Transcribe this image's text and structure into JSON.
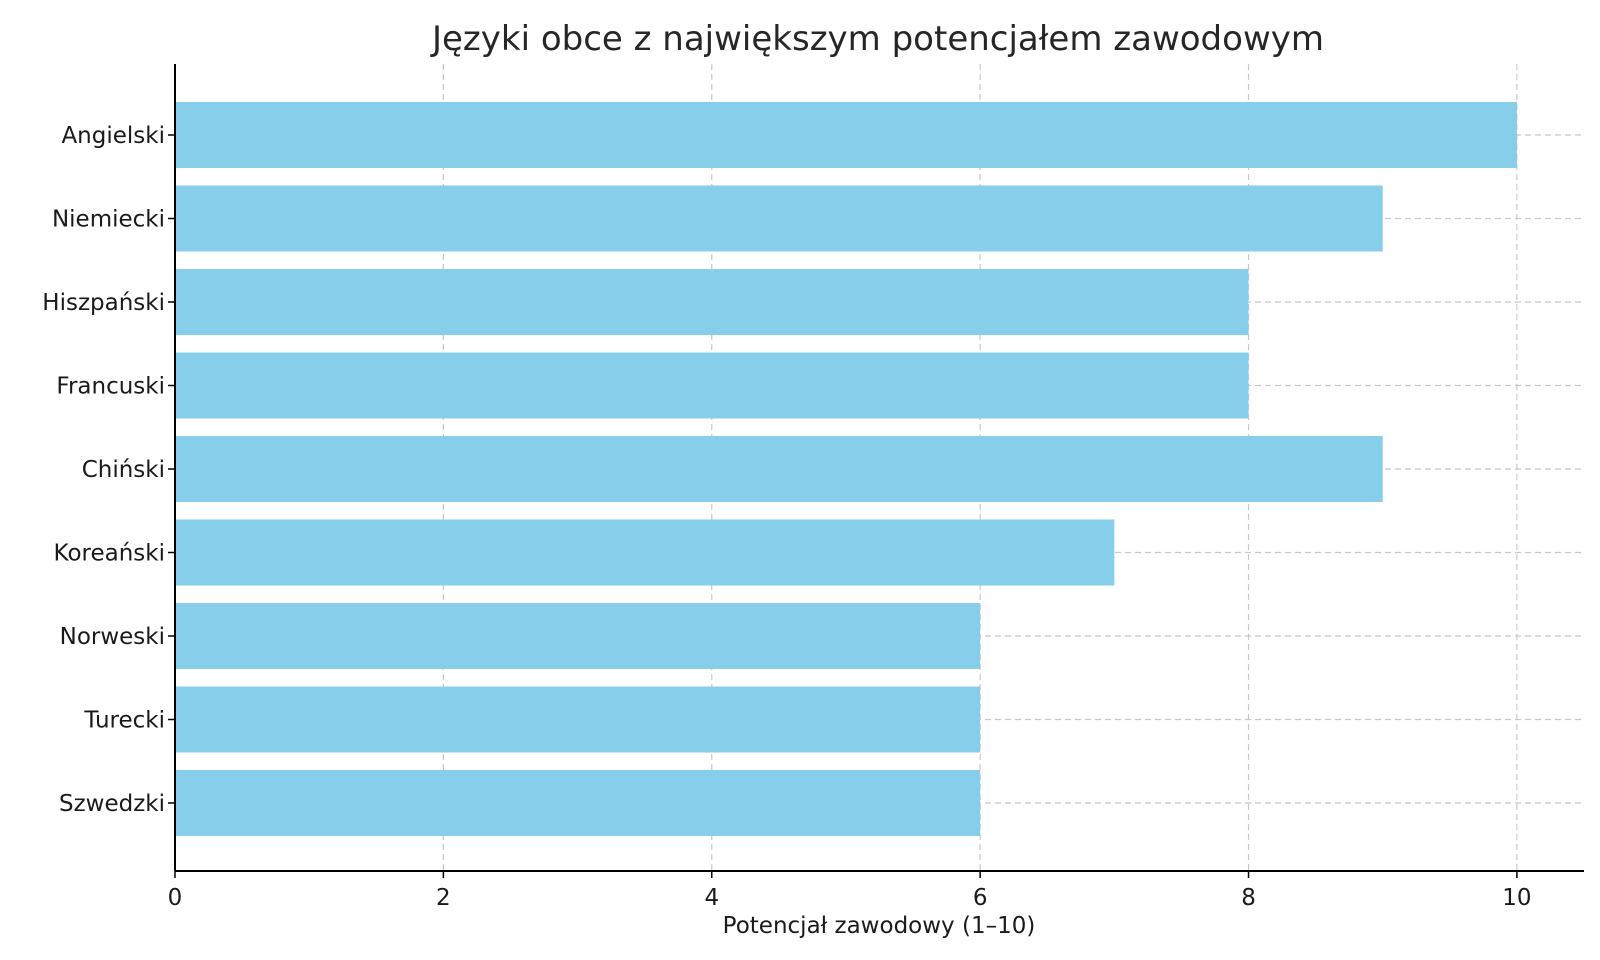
{
  "chart_data": {
    "type": "bar",
    "orientation": "horizontal",
    "title": "Języki obce z największym potencjałem zawodowym",
    "xlabel": "Potencjał zawodowy (1–10)",
    "ylabel": "",
    "categories": [
      "Angielski",
      "Niemiecki",
      "Hiszpański",
      "Francuski",
      "Chiński",
      "Koreański",
      "Norweski",
      "Turecki",
      "Szwedzki"
    ],
    "values": [
      10,
      9,
      8,
      8,
      9,
      7,
      6,
      6,
      6
    ],
    "xlim": [
      0,
      10.5
    ],
    "xticks": [
      0,
      2,
      4,
      6,
      8,
      10
    ],
    "grid": true,
    "bar_color": "#87ceeb"
  }
}
